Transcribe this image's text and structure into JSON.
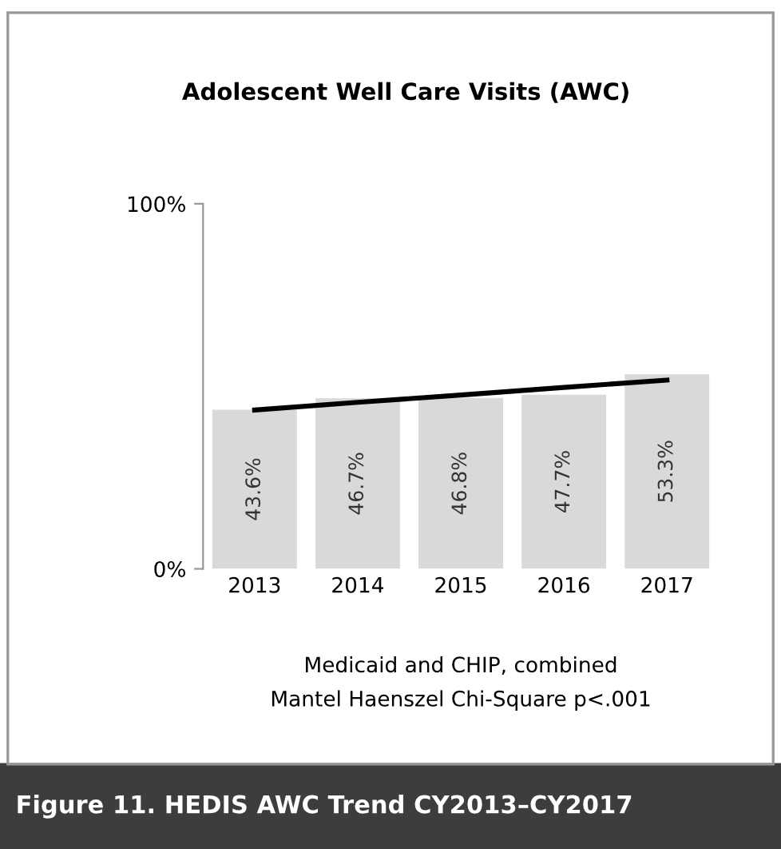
{
  "chart_data": {
    "type": "bar",
    "title": "Adolescent Well Care Visits (AWC)",
    "categories": [
      "2013",
      "2014",
      "2015",
      "2016",
      "2017"
    ],
    "series": [
      {
        "color": "#d9d9d9",
        "values": [
          43.6,
          46.7,
          46.8,
          47.7,
          53.3
        ],
        "value_labels": [
          "43.6%",
          "46.7%",
          "46.8%",
          "47.7%",
          "53.3%"
        ]
      },
      {
        "type": "line",
        "color": "#000000",
        "values": [
          43.5,
          45.6,
          47.6,
          49.7,
          51.7
        ]
      }
    ],
    "ylim": [
      0,
      100
    ],
    "yticks": [
      {
        "value": 0,
        "label": "0%"
      },
      {
        "value": 100,
        "label": "100%"
      }
    ],
    "grid": false,
    "legend": false,
    "annotations": [
      "Medicaid and CHIP, combined",
      "Mantel Haenszel Chi-Square p<.001",
      "Figure 11. HEDIS AWC Trend CY2013–CY2017"
    ]
  }
}
